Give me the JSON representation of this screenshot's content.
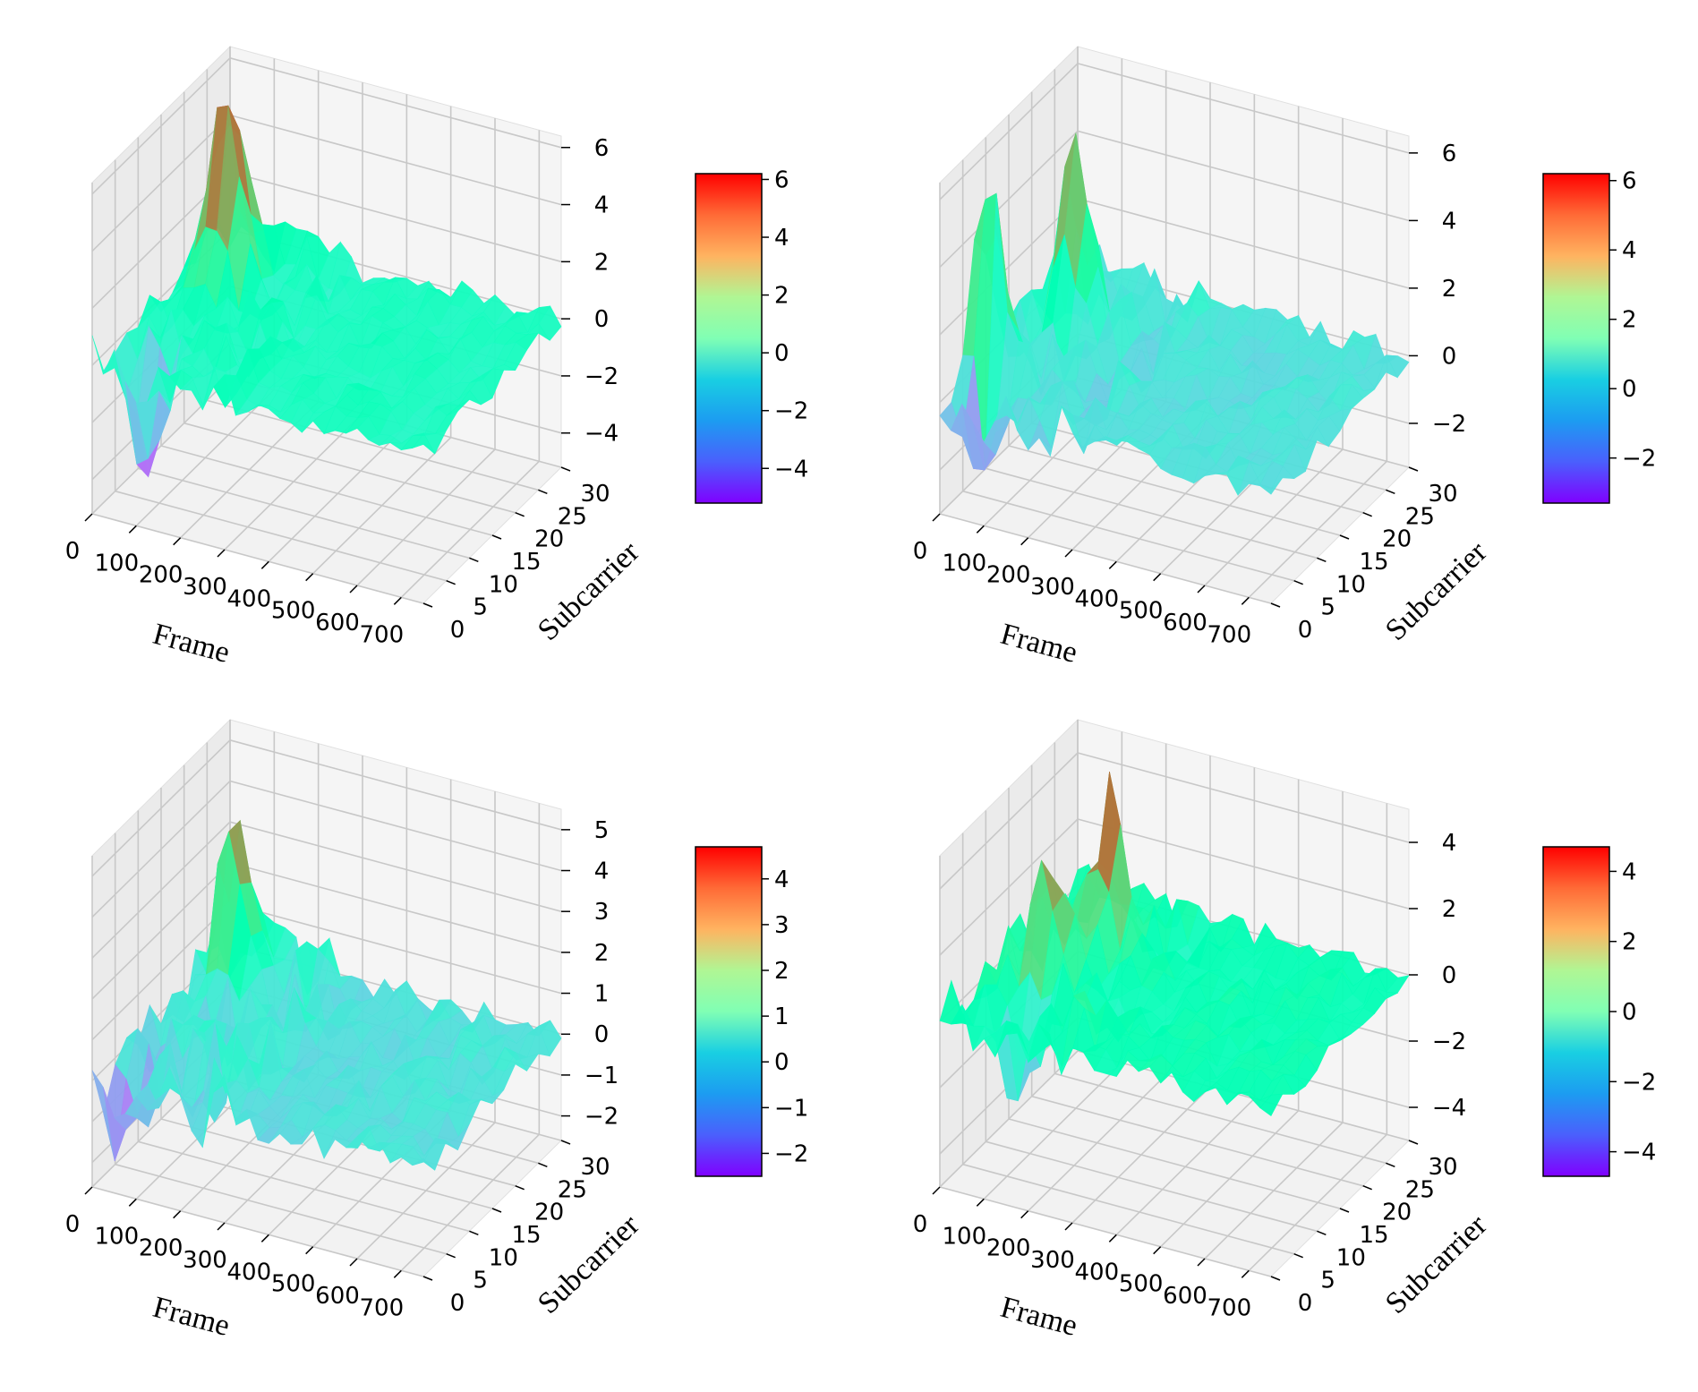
{
  "chart_data": [
    {
      "type": "surface3d",
      "panel": "top-left",
      "xlabel": "Frame",
      "ylabel": "Subcarrier",
      "xticks": [
        0,
        100,
        200,
        300,
        400,
        500,
        600,
        700
      ],
      "yticks": [
        0,
        5,
        10,
        15,
        20,
        25,
        30
      ],
      "zticks": [
        6,
        4,
        2,
        0,
        -2,
        -4
      ],
      "zlim": [
        -5.2,
        6.4
      ],
      "colorbar": {
        "colormap": "rainbow",
        "range": [
          -5.2,
          6.2
        ],
        "ticks": [
          6,
          4,
          2,
          0,
          -2,
          -4
        ]
      },
      "peaks": [
        {
          "frame": 70,
          "subcarrier": 24,
          "value": 6.0
        },
        {
          "frame": 90,
          "subcarrier": 20,
          "value": 5.8
        },
        {
          "frame": 80,
          "subcarrier": 4,
          "value": -5.0
        }
      ]
    },
    {
      "type": "surface3d",
      "panel": "top-right",
      "xlabel": "Frame",
      "ylabel": "Subcarrier",
      "xticks": [
        0,
        100,
        200,
        300,
        400,
        500,
        600,
        700
      ],
      "yticks": [
        0,
        5,
        10,
        15,
        20,
        25,
        30
      ],
      "zticks": [
        6,
        4,
        2,
        0,
        -2
      ],
      "zlim": [
        -3.3,
        6.5
      ],
      "colorbar": {
        "colormap": "rainbow",
        "range": [
          -3.3,
          6.2
        ],
        "ticks": [
          6,
          4,
          2,
          0,
          -2
        ]
      },
      "peaks": [
        {
          "frame": 30,
          "subcarrier": 8,
          "value": 6.1
        },
        {
          "frame": 100,
          "subcarrier": 20,
          "value": 5.6
        },
        {
          "frame": 60,
          "subcarrier": 4,
          "value": -3.2
        }
      ]
    },
    {
      "type": "surface3d",
      "panel": "bottom-left",
      "xlabel": "Frame",
      "ylabel": "Subcarrier",
      "xticks": [
        0,
        100,
        200,
        300,
        400,
        500,
        600,
        700
      ],
      "yticks": [
        0,
        5,
        10,
        15,
        20,
        25,
        30
      ],
      "zticks": [
        5,
        4,
        3,
        2,
        1,
        0,
        -1,
        -2
      ],
      "zlim": [
        -2.6,
        5.5
      ],
      "colorbar": {
        "colormap": "rainbow",
        "range": [
          -2.5,
          4.7
        ],
        "ticks": [
          4,
          3,
          2,
          1,
          0,
          -1,
          -2
        ]
      },
      "peaks": [
        {
          "frame": 80,
          "subcarrier": 24,
          "value": 4.7
        },
        {
          "frame": 30,
          "subcarrier": 3,
          "value": -2.5
        }
      ]
    },
    {
      "type": "surface3d",
      "panel": "bottom-right",
      "xlabel": "Frame",
      "ylabel": "Subcarrier",
      "xticks": [
        0,
        100,
        200,
        300,
        400,
        500,
        600,
        700
      ],
      "yticks": [
        0,
        5,
        10,
        15,
        20,
        25,
        30
      ],
      "zticks": [
        4,
        2,
        0,
        -2,
        -4
      ],
      "zlim": [
        -5.0,
        5.0
      ],
      "colorbar": {
        "colormap": "rainbow",
        "range": [
          -4.7,
          4.7
        ],
        "ticks": [
          4,
          2,
          0,
          -2,
          -4
        ]
      },
      "peaks": [
        {
          "frame": 150,
          "subcarrier": 22,
          "value": 4.5
        },
        {
          "frame": 100,
          "subcarrier": 14,
          "value": 3.8
        },
        {
          "frame": 120,
          "subcarrier": 6,
          "value": -2.7
        }
      ]
    }
  ]
}
